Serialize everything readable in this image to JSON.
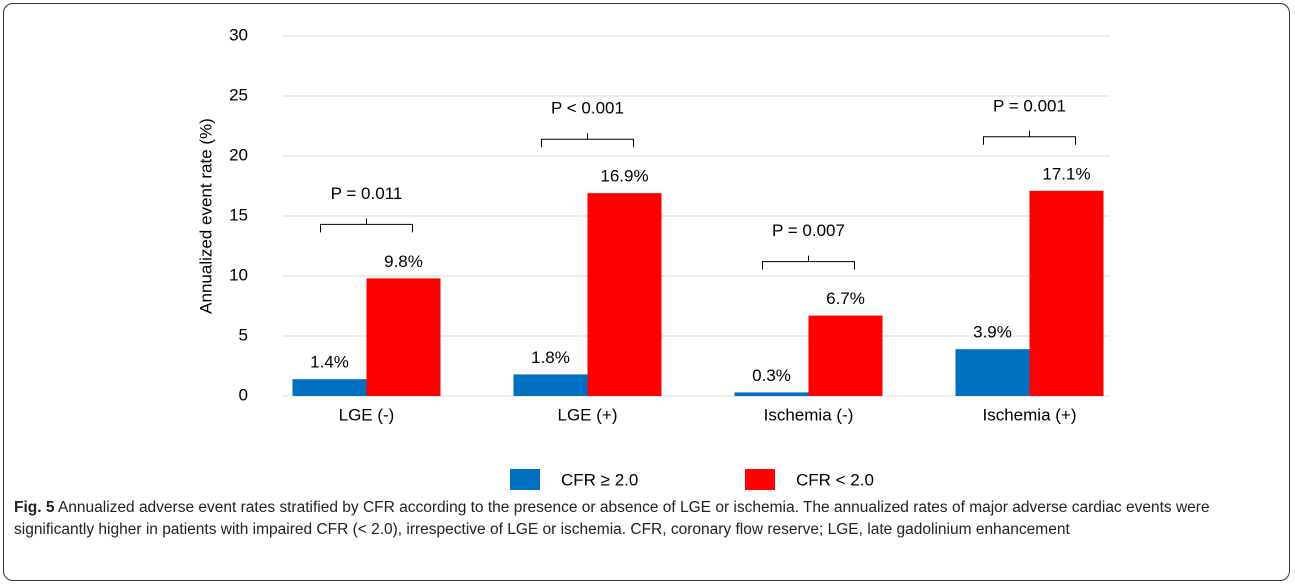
{
  "chart_data": {
    "type": "bar",
    "y_label": "Annualized event rate (%)",
    "categories": [
      "LGE (-)",
      "LGE (+)",
      "Ischemia (-)",
      "Ischemia (+)"
    ],
    "series": [
      {
        "name": "CFR ≥ 2.0",
        "color": "#0070c0",
        "values": [
          1.4,
          1.8,
          0.3,
          3.9
        ],
        "value_labels": [
          "1.4%",
          "1.8%",
          "0.3%",
          "3.9%"
        ]
      },
      {
        "name": "CFR < 2.0",
        "color": "#ff0000",
        "values": [
          9.8,
          16.9,
          6.7,
          17.1
        ],
        "value_labels": [
          "9.8%",
          "16.9%",
          "6.7%",
          "17.1%"
        ]
      }
    ],
    "annotations": [
      "P = 0.011",
      "P < 0.001",
      "P = 0.007",
      "P = 0.001"
    ],
    "ylim": [
      0,
      30
    ],
    "yticks": [
      0,
      5,
      10,
      15,
      20,
      25,
      30
    ],
    "grid": true
  },
  "caption": {
    "label": "Fig. 5",
    "text": "Annualized adverse event rates stratified by CFR according to the presence or absence of LGE or ischemia. The annualized rates of major adverse cardiac events were significantly higher in patients with impaired CFR (< 2.0), irrespective of LGE or ischemia. CFR, coronary flow reserve; LGE, late gadolinium enhancement"
  }
}
